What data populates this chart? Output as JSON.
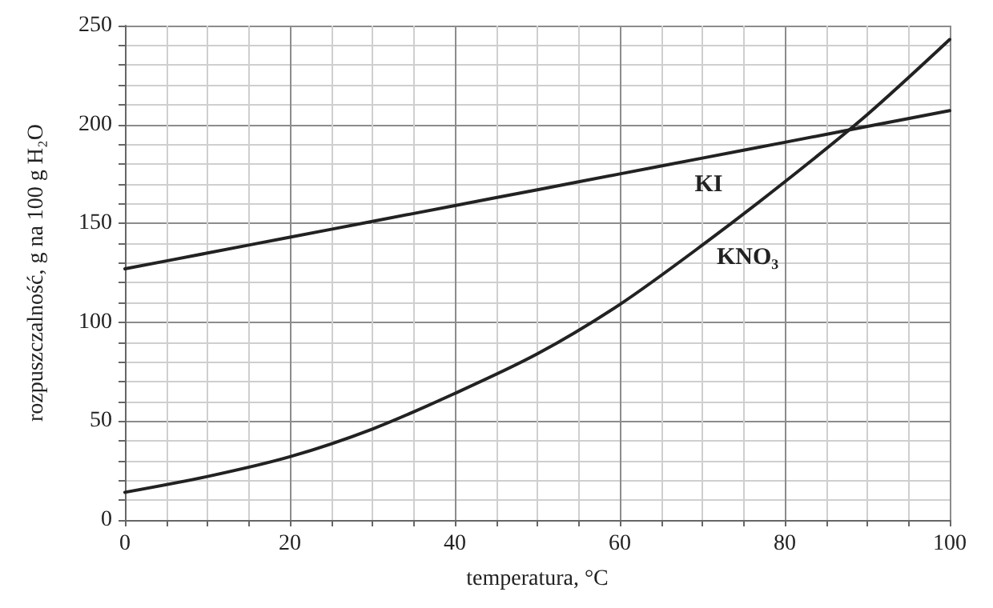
{
  "chart_data": {
    "type": "line",
    "xlabel": "temperatura, °C",
    "ylabel": "rozpuszczalność, g na 100 g H₂O",
    "x": [
      0,
      10,
      20,
      30,
      40,
      50,
      60,
      70,
      80,
      90,
      100
    ],
    "series": [
      {
        "name": "KI",
        "color": "#222222",
        "values": [
          127,
          135,
          143,
          151,
          159,
          167,
          175,
          183,
          191,
          199,
          207
        ]
      },
      {
        "name": "KNO₃",
        "color": "#222222",
        "values": [
          14,
          22,
          32,
          46,
          64,
          84,
          109,
          139,
          171,
          205,
          243
        ]
      }
    ],
    "xlim": [
      0,
      100
    ],
    "ylim": [
      0,
      250
    ],
    "xticks": [
      0,
      {
        "value": 5,
        "label": null
      },
      {
        "value": 10,
        "label": null
      },
      {
        "value": 15,
        "label": null
      },
      20,
      {
        "value": 25,
        "label": null
      },
      {
        "value": 30,
        "label": null
      },
      {
        "value": 35,
        "label": null
      },
      40,
      {
        "value": 45,
        "label": null
      },
      {
        "value": 50,
        "label": null
      },
      {
        "value": 55,
        "label": null
      },
      60,
      {
        "value": 65,
        "label": null
      },
      {
        "value": 70,
        "label": null
      },
      {
        "value": 75,
        "label": null
      },
      80,
      {
        "value": 85,
        "label": null
      },
      {
        "value": 90,
        "label": null
      },
      {
        "value": 95,
        "label": null
      },
      100
    ],
    "yticks": [
      0,
      {
        "value": 10,
        "label": null
      },
      {
        "value": 20,
        "label": null
      },
      {
        "value": 30,
        "label": null
      },
      {
        "value": 40,
        "label": null
      },
      50,
      {
        "value": 60,
        "label": null
      },
      {
        "value": 70,
        "label": null
      },
      {
        "value": 80,
        "label": null
      },
      {
        "value": 90,
        "label": null
      },
      100,
      {
        "value": 110,
        "label": null
      },
      {
        "value": 120,
        "label": null
      },
      {
        "value": 130,
        "label": null
      },
      {
        "value": 140,
        "label": null
      },
      150,
      {
        "value": 160,
        "label": null
      },
      {
        "value": 170,
        "label": null
      },
      {
        "value": 180,
        "label": null
      },
      {
        "value": 190,
        "label": null
      },
      200,
      {
        "value": 210,
        "label": null
      },
      {
        "value": 220,
        "label": null
      },
      {
        "value": 230,
        "label": null
      },
      {
        "value": 240,
        "label": null
      },
      250
    ],
    "grid": true,
    "marker": "none",
    "line_style": "solid",
    "legend": false
  }
}
